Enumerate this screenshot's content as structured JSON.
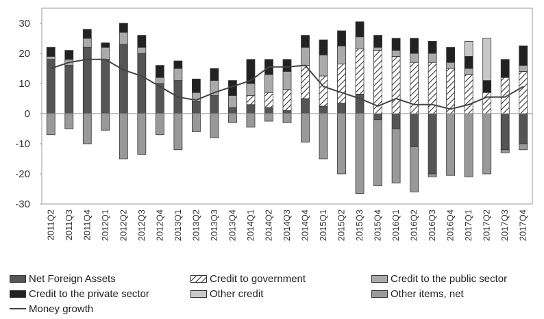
{
  "chart_data": {
    "type": "bar",
    "stacked": true,
    "title": "",
    "xlabel": "",
    "ylabel": "",
    "ylim": [
      -30,
      35
    ],
    "yticks": [
      "30",
      "20",
      "10",
      "0",
      "-10",
      "-20",
      "-30"
    ],
    "ytick_values": [
      30,
      20,
      10,
      0,
      -10,
      -20,
      -30
    ],
    "grid": false,
    "legend_placement": "bottom",
    "categories": [
      "2011Q2",
      "2011Q3",
      "2011Q4",
      "2012Q1",
      "2012Q2",
      "2012Q3",
      "2012Q4",
      "2013Q1",
      "2013Q2",
      "2013Q3",
      "2013Q4",
      "2014Q1",
      "2014Q2",
      "2014Q3",
      "2014Q4",
      "2015Q1",
      "2015Q2",
      "2015Q3",
      "2015Q4",
      "2016Q1",
      "2016Q2",
      "2016Q3",
      "2016Q4",
      "2017Q1",
      "2017Q2",
      "2017Q3",
      "2017Q4"
    ],
    "series": [
      {
        "name": "Net Foreign Assets",
        "kind": "bar",
        "color": "#555555",
        "pattern": "solid",
        "values": [
          18,
          16,
          22,
          18,
          23,
          20,
          10,
          11,
          4,
          6,
          2,
          3,
          2,
          1,
          5,
          2.5,
          3.5,
          6.5,
          -2,
          -5,
          -11,
          -20,
          0,
          0,
          0,
          -12,
          -10
        ]
      },
      {
        "name": "Credit to government",
        "kind": "bar",
        "color": "#ffffff",
        "pattern": "hatch",
        "values": [
          0,
          0,
          0,
          0,
          0,
          0,
          0,
          0,
          0,
          0,
          0,
          3,
          5,
          7,
          11,
          10,
          13,
          15,
          21,
          19,
          17,
          17,
          15,
          13,
          7,
          12,
          14
        ]
      },
      {
        "name": "Credit to the public sector",
        "kind": "bar",
        "color": "#aaaaaa",
        "pattern": "solid",
        "values": [
          1,
          2,
          3,
          4,
          4,
          2,
          2,
          4,
          3,
          5,
          4,
          4,
          6,
          6,
          6,
          7,
          6,
          4,
          1,
          2,
          3,
          3,
          2,
          2,
          0,
          0,
          2
        ]
      },
      {
        "name": "Credit to the private sector",
        "kind": "bar",
        "color": "#222222",
        "pattern": "solid",
        "values": [
          3,
          3,
          3,
          1.5,
          3,
          4,
          4,
          2.5,
          4.5,
          4,
          5,
          8,
          5,
          4,
          4,
          5,
          5,
          5,
          4,
          4,
          5,
          4,
          5,
          4,
          4,
          6,
          6.5
        ]
      },
      {
        "name": "Other credit",
        "kind": "bar",
        "color": "#c8c8c8",
        "pattern": "solid",
        "values": [
          0,
          0,
          0,
          0,
          0,
          0,
          0,
          0,
          0,
          0,
          0,
          0,
          0,
          0,
          0,
          0,
          0,
          0,
          0,
          0,
          0,
          0,
          0,
          5,
          14,
          0,
          0
        ]
      },
      {
        "name": "Other items, net",
        "kind": "bar",
        "color": "#999999",
        "pattern": "solid",
        "values": [
          -7,
          -5,
          -10,
          -5.5,
          -15,
          -13.5,
          -7,
          -12,
          -6,
          -8,
          -3,
          -4.5,
          -2.5,
          -3,
          -9.5,
          -15,
          -20,
          -26.5,
          -22,
          -18,
          -15,
          -1,
          -20.5,
          -21,
          -20,
          -1,
          -2
        ]
      },
      {
        "name": "Money growth",
        "kind": "line",
        "color": "#444444",
        "values": [
          15,
          17,
          18,
          18,
          14.5,
          12.5,
          9,
          5.5,
          4.5,
          7,
          9,
          11,
          15.5,
          15.5,
          16,
          9,
          7,
          5,
          2.5,
          5,
          3,
          3,
          1.5,
          3,
          5.5,
          5.5,
          9
        ]
      }
    ]
  }
}
